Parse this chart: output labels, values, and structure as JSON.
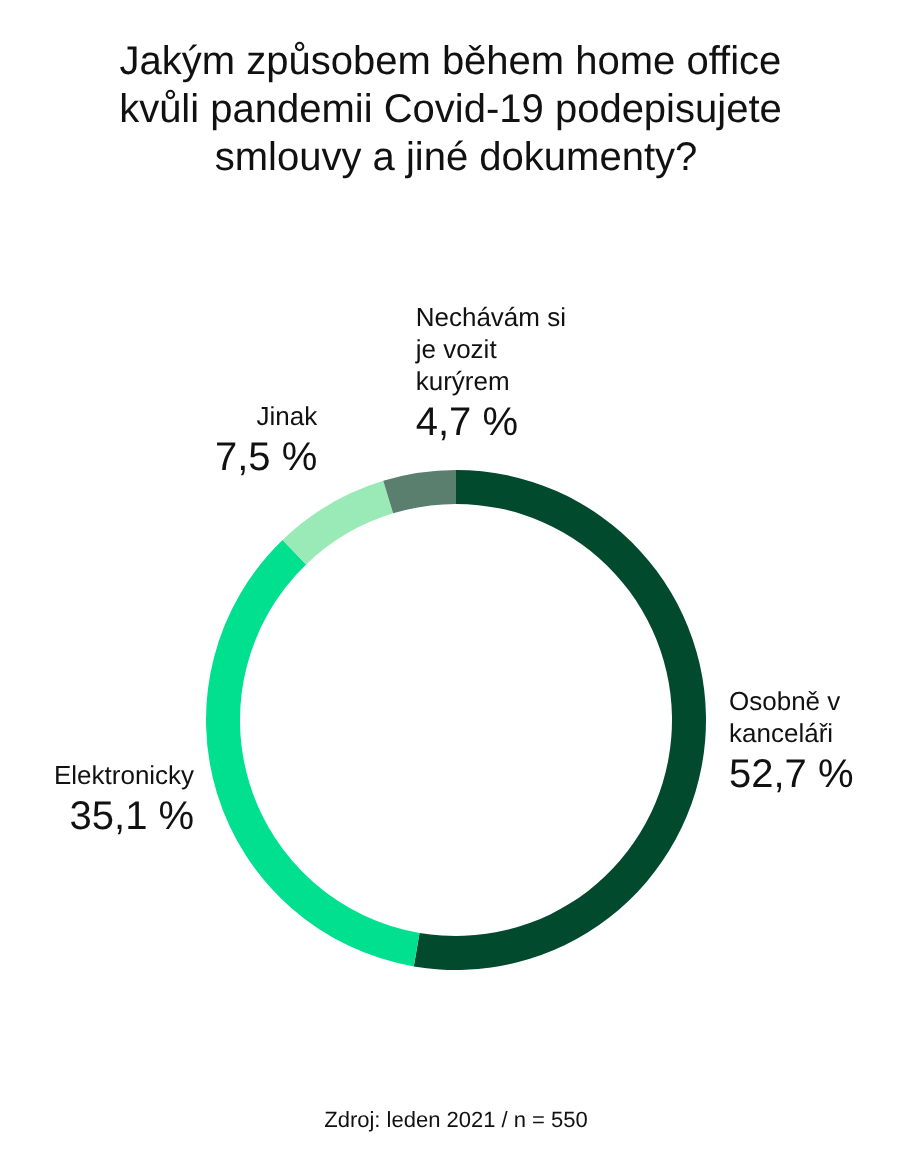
{
  "chart_data": {
    "type": "donut",
    "title": "Jakým způsobem během home office kvůli pandemii Covid-19 podepisujete smlouvy a jiné dokumenty?",
    "categories": [
      "Osobně v kanceláři",
      "Elektronicky",
      "Jinak",
      "Nechávám si je vozit kurýrem"
    ],
    "values": [
      52.7,
      35.1,
      7.5,
      4.7
    ],
    "value_labels": [
      "52,7 %",
      "35,1 %",
      "7,5 %",
      "4,7 %"
    ],
    "colors": [
      "#024a2e",
      "#00e08f",
      "#9aeab8",
      "#5a7f6e"
    ],
    "annotations": [
      "Zdroj: leden 2021 / n = 550"
    ]
  }
}
